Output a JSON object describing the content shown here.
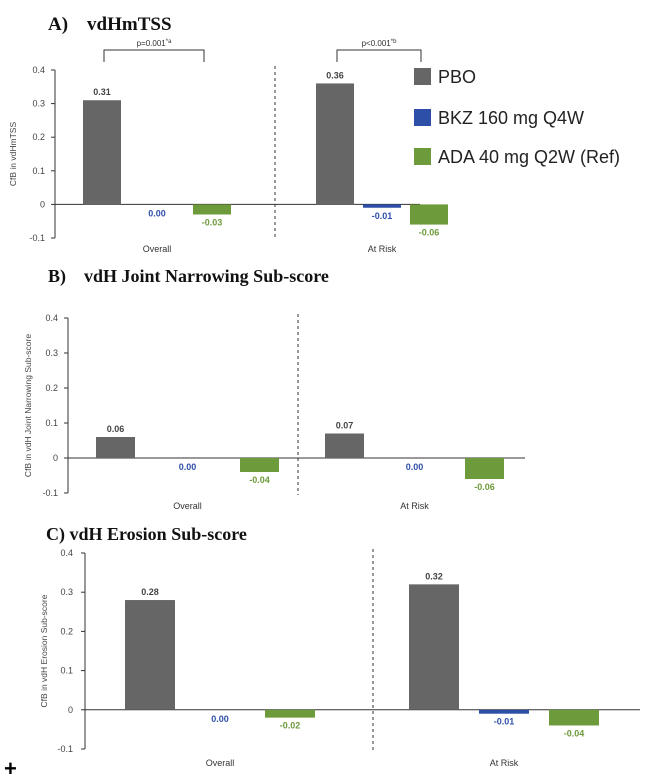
{
  "colors": {
    "PBO": "#666666",
    "BKZ 160 mg Q4W": "#2e4fa8",
    "ADA 40 mg Q2W (Ref)": "#6d9a3a"
  },
  "legend": {
    "items": [
      {
        "label": "PBO",
        "color": "#666666"
      },
      {
        "label": "BKZ 160 mg Q4W",
        "color": "#2e4fa8"
      },
      {
        "label": "ADA 40 mg Q2W (Ref)",
        "color": "#6d9a3a"
      }
    ]
  },
  "footer_mark": "+",
  "chart_data": [
    {
      "type": "bar",
      "title": "A)    vdHmTSS",
      "ylabel": "CfB in vdHmTSS",
      "ylim": [
        -0.1,
        0.4
      ],
      "yticks": [
        "-0.1",
        "0",
        "0.1",
        "0.2",
        "0.3",
        "0.4"
      ],
      "categories": [
        "Overall",
        "At Risk"
      ],
      "series": [
        {
          "name": "PBO",
          "values": [
            0.31,
            0.36
          ],
          "labels": [
            "0.31",
            "0.36"
          ]
        },
        {
          "name": "BKZ 160 mg Q4W",
          "values": [
            0.0,
            -0.01
          ],
          "labels": [
            "0.00",
            "-0.01"
          ]
        },
        {
          "name": "ADA 40 mg Q2W (Ref)",
          "values": [
            -0.03,
            -0.06
          ],
          "labels": [
            "-0.03",
            "-0.06"
          ]
        }
      ],
      "annotations": [
        {
          "text": "p=0.001",
          "sup": "*a",
          "category": "Overall"
        },
        {
          "text": "p<0.001",
          "sup": "*b",
          "category": "At Risk"
        }
      ]
    },
    {
      "type": "bar",
      "title": "B)    vdH Joint Narrowing Sub-score",
      "ylabel": "CfB in vdH Joint Narrowing Sub-score",
      "ylim": [
        -0.1,
        0.4
      ],
      "yticks": [
        "-0.1",
        "0",
        "0.1",
        "0.2",
        "0.3",
        "0.4"
      ],
      "categories": [
        "Overall",
        "At Risk"
      ],
      "series": [
        {
          "name": "PBO",
          "values": [
            0.06,
            0.07
          ],
          "labels": [
            "0.06",
            "0.07"
          ]
        },
        {
          "name": "BKZ 160 mg Q4W",
          "values": [
            0.0,
            0.0
          ],
          "labels": [
            "0.00",
            "0.00"
          ]
        },
        {
          "name": "ADA 40 mg Q2W (Ref)",
          "values": [
            -0.04,
            -0.06
          ],
          "labels": [
            "-0.04",
            "-0.06"
          ]
        }
      ],
      "annotations": []
    },
    {
      "type": "bar",
      "title": "C) vdH Erosion Sub-score",
      "ylabel": "CfB in vdH Erosion Sub-score",
      "ylim": [
        -0.1,
        0.4
      ],
      "yticks": [
        "-0.1",
        "0",
        "0.1",
        "0.2",
        "0.3",
        "0.4"
      ],
      "categories": [
        "Overall",
        "At Risk"
      ],
      "series": [
        {
          "name": "PBO",
          "values": [
            0.28,
            0.32
          ],
          "labels": [
            "0.28",
            "0.32"
          ]
        },
        {
          "name": "BKZ 160 mg Q4W",
          "values": [
            0.0,
            -0.01
          ],
          "labels": [
            "0.00",
            "-0.01"
          ]
        },
        {
          "name": "ADA 40 mg Q2W (Ref)",
          "values": [
            -0.02,
            -0.04
          ],
          "labels": [
            "-0.02",
            "-0.04"
          ]
        }
      ],
      "annotations": []
    }
  ]
}
